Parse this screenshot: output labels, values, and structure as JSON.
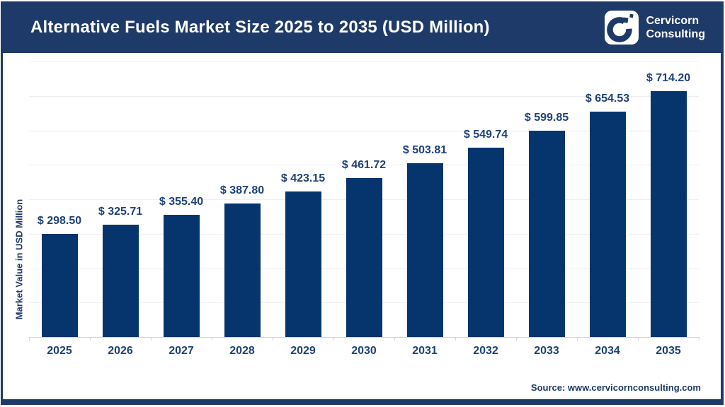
{
  "header": {
    "title": "Alternative Fuels Market Size 2025 to 2035 (USD Million)",
    "brand": {
      "line1": "Cervicorn",
      "line2": "Consulting"
    }
  },
  "chart_data": {
    "type": "bar",
    "title": "Alternative Fuels Market Size 2025 to 2035 (USD Million)",
    "categories": [
      "2025",
      "2026",
      "2027",
      "2028",
      "2029",
      "2030",
      "2031",
      "2032",
      "2033",
      "2034",
      "2035"
    ],
    "values": [
      298.5,
      325.71,
      355.4,
      387.8,
      423.15,
      461.72,
      503.81,
      549.74,
      599.85,
      654.53,
      714.2
    ],
    "value_labels": [
      "$ 298.50",
      "$ 325.71",
      "$ 355.40",
      "$ 387.80",
      "$ 423.15",
      "$ 461.72",
      "$ 503.81",
      "$ 549.74",
      "$ 599.85",
      "$ 654.53",
      "$ 714.20"
    ],
    "xlabel": "",
    "ylabel": "Market Value in USD Million",
    "ylim": [
      0,
      800
    ],
    "gridline_step": 100,
    "grid": true,
    "legend": "none",
    "bar_color": "#06356e",
    "label_color": "#1e4278",
    "gridline_color": "#eeeeee",
    "axis_color": "#d6d6d6"
  },
  "footer": {
    "source": "Source: www.cervicornconsulting.com"
  },
  "colors": {
    "brand_navy": "#1e3a68",
    "background": "#ffffff"
  }
}
